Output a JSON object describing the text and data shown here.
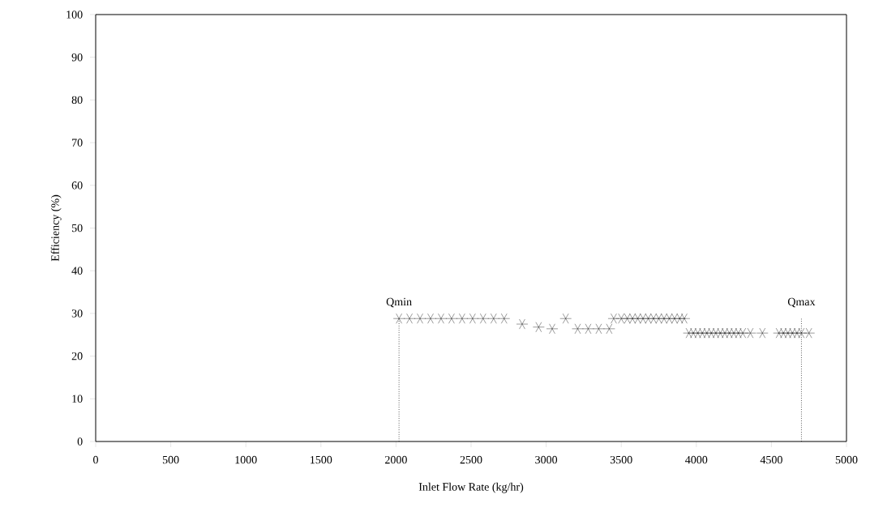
{
  "chart_data": {
    "type": "scatter",
    "xlabel": "Inlet Flow Rate (kg/hr)",
    "ylabel": "Efficiency (%)",
    "xlim": [
      0,
      5000
    ],
    "ylim": [
      0,
      100
    ],
    "xticks": [
      0,
      500,
      1000,
      1500,
      2000,
      2500,
      3000,
      3500,
      4000,
      4500,
      5000
    ],
    "yticks": [
      0,
      10,
      20,
      30,
      40,
      50,
      60,
      70,
      80,
      90,
      100
    ],
    "grid": false,
    "marker": "cross",
    "series": [
      {
        "color": "#000000",
        "x": [
          2020,
          2090,
          2160,
          2230,
          2300,
          2370,
          2440,
          2510,
          2580,
          2650,
          2720,
          2840,
          2950,
          3040,
          3130,
          3210,
          3280,
          3350,
          3420,
          3450,
          3500,
          3540,
          3575,
          3610,
          3645,
          3680,
          3715,
          3750,
          3785,
          3820,
          3855,
          3890,
          3920,
          3950,
          3980,
          4010,
          4040,
          4070,
          4100,
          4130,
          4160,
          4190,
          4220,
          4250,
          4280,
          4310,
          4360,
          4440,
          4550,
          4580,
          4610,
          4640,
          4670,
          4700,
          4750
        ],
        "values": [
          28.8,
          28.8,
          28.8,
          28.8,
          28.8,
          28.8,
          28.8,
          28.8,
          28.8,
          28.8,
          28.8,
          27.5,
          26.8,
          26.4,
          28.8,
          26.4,
          26.4,
          26.4,
          26.4,
          28.8,
          28.8,
          28.8,
          28.8,
          28.8,
          28.8,
          28.8,
          28.8,
          28.8,
          28.8,
          28.8,
          28.8,
          28.8,
          28.8,
          25.4,
          25.4,
          25.4,
          25.4,
          25.4,
          25.4,
          25.4,
          25.4,
          25.4,
          25.4,
          25.4,
          25.4,
          25.4,
          25.4,
          25.4,
          25.4,
          25.4,
          25.4,
          25.4,
          25.4,
          25.4,
          25.4
        ]
      }
    ],
    "ref_lines": [
      {
        "axis": "x",
        "value": 2020,
        "label": "Qmin",
        "line_style": "dotted"
      },
      {
        "axis": "x",
        "value": 4700,
        "label": "Qmax",
        "line_style": "dotted"
      }
    ]
  }
}
